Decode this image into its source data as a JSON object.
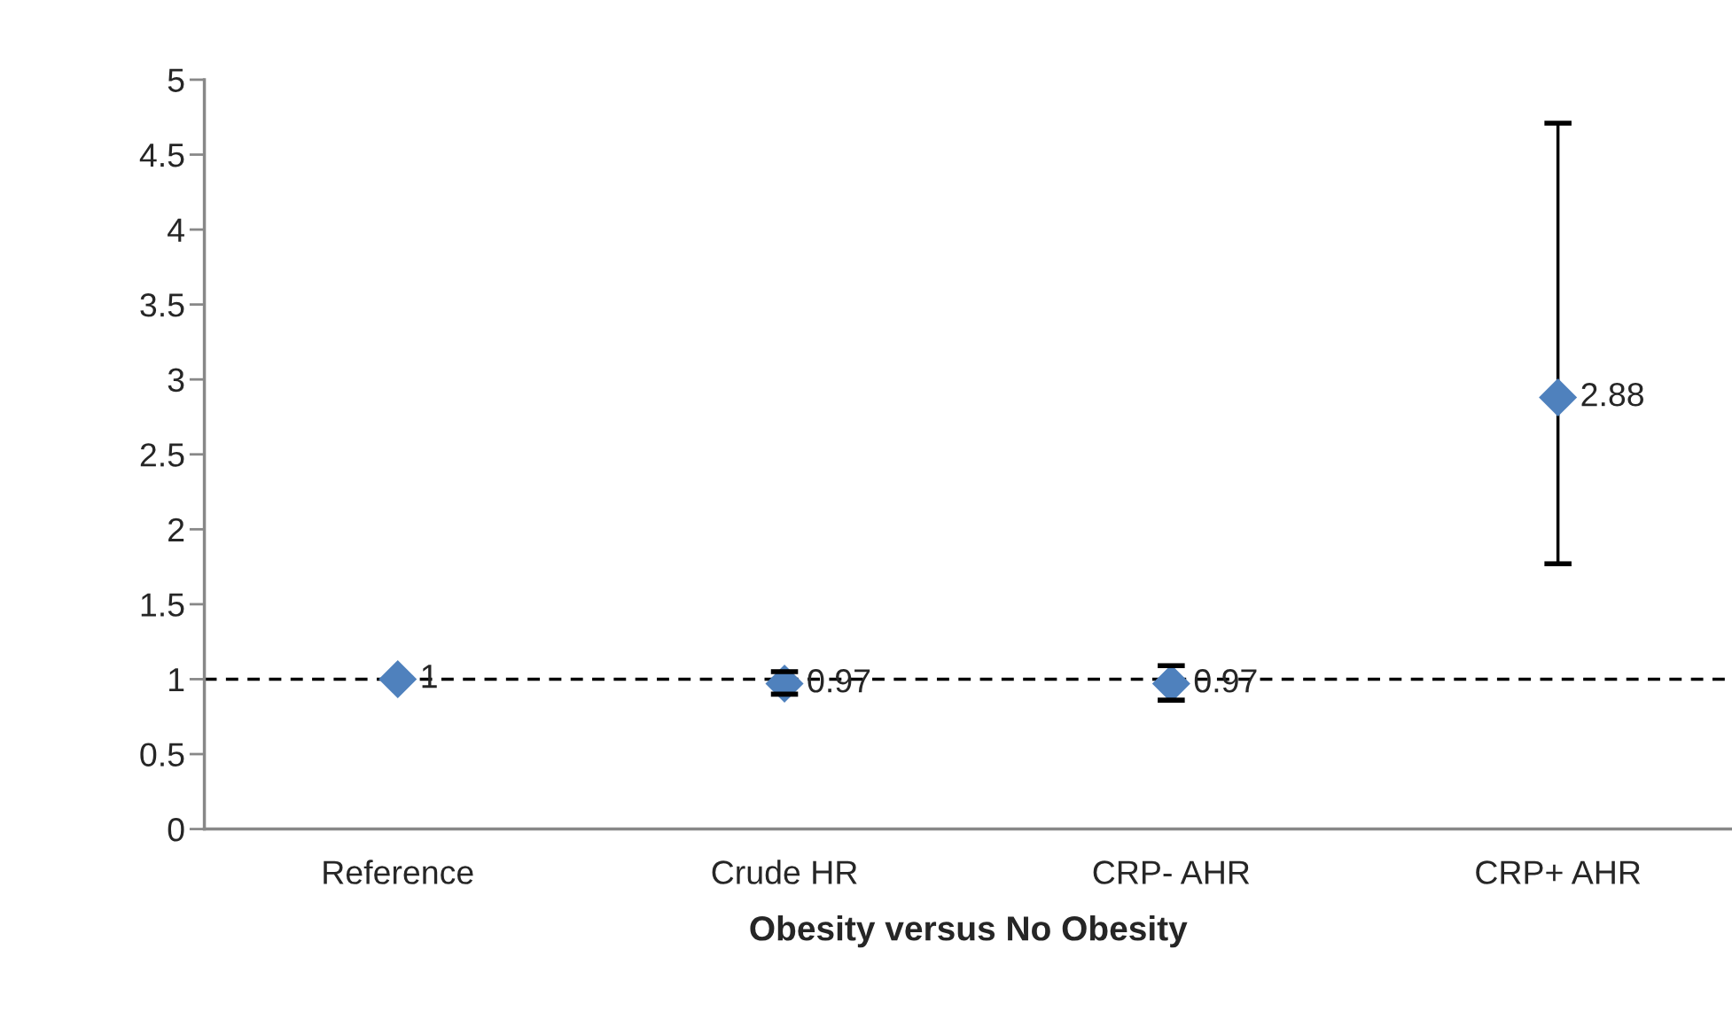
{
  "chart_data": {
    "type": "scatter",
    "xlabel": "Obesity versus No Obesity",
    "categories": [
      "Reference",
      "Crude HR",
      "CRP- AHR",
      "CRP+ AHR"
    ],
    "series": [
      {
        "color": "#4f81bd",
        "values": [
          1,
          0.97,
          0.97,
          2.88
        ],
        "errors": [
          null,
          [
            0.9,
            1.05
          ],
          [
            0.86,
            1.09
          ],
          [
            1.77,
            4.71
          ]
        ],
        "marker": "diamond",
        "data_labels": true
      }
    ],
    "ylim": [
      0,
      5
    ],
    "yticks": [
      0,
      0.5,
      1,
      1.5,
      2,
      2.5,
      3,
      3.5,
      4,
      4.5,
      5
    ],
    "ref_lines": [
      {
        "axis": "y",
        "value": 1,
        "color": "#000000",
        "line_style": "dashed"
      }
    ],
    "grid": false,
    "legend": false
  }
}
